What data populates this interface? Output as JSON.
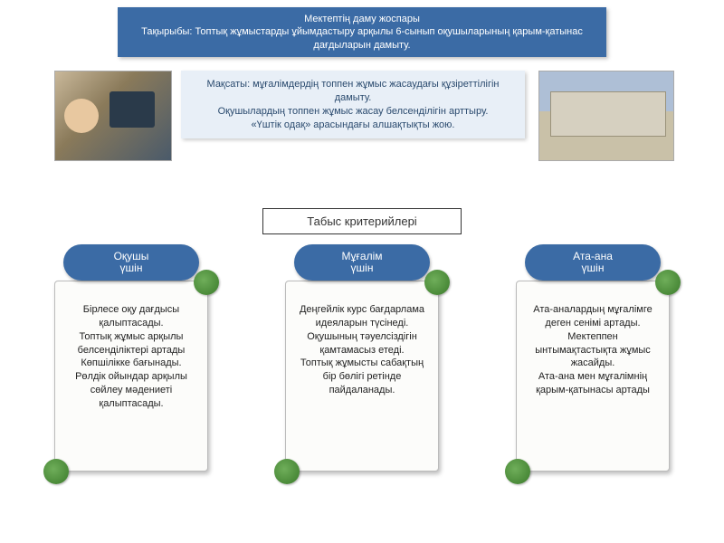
{
  "header": {
    "line1": "Мектептің даму жоспары",
    "line2": "Тақырыбы: Топтық жұмыстарды ұйымдастыру арқылы 6-сынып оқушыларының қарым-қатынас дағдыларын дамыту."
  },
  "goal": {
    "line1": "Мақсаты: мұғалімдердің топпен жұмыс жасаудағы құзіреттілігін дамыту.",
    "line2": "Оқушылардың топпен жұмыс жасау белсенділігін арттыру.",
    "line3": "«Үштік одақ» арасындағы алшақтықты жою."
  },
  "criteria_label": "Табыс критерийлері",
  "pills": {
    "student": "Оқушы\nүшін",
    "teacher": "Мұғалім\nүшін",
    "parent": "Ата-ана\nүшін"
  },
  "scrolls": {
    "student": "Бірлесе оқу дағдысы қалыптасады.\nТоптық жұмыс арқылы белсенділіктері артады\nКөпшілікке бағынады.\nРөлдік ойындар арқылы сөйлеу мәдениеті қалыптасады.",
    "teacher": "Деңгейлік курс бағдарлама идеяларын түсінеді.\nОқушының тәуелсіздігін қамтамасыз етеді.\nТоптық жұмысты сабақтың бір бөлігі ретінде пайдаланады.",
    "parent": "Ата-аналардың мұғалімге деген сенімі артады.\nМектеппен ынтымақтастықта жұмыс жасайды.\nАта-ана мен мұғалімнің қарым-қатынасы артады"
  },
  "colors": {
    "blue": "#3b6ba5",
    "lightblue": "#e8eff7",
    "green": "#3a7a2a"
  }
}
